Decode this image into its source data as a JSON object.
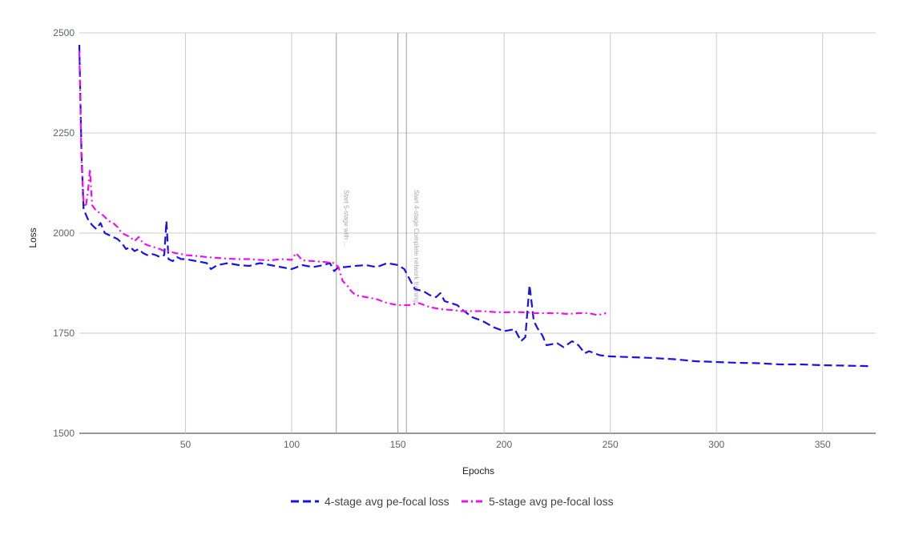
{
  "chart_data": {
    "type": "line",
    "title": "",
    "xlabel": "Epochs",
    "ylabel": "Loss",
    "xlim": [
      0,
      375
    ],
    "ylim": [
      1500,
      2500
    ],
    "x_ticks": [
      50,
      100,
      150,
      200,
      250,
      300,
      350
    ],
    "y_ticks": [
      1500,
      1750,
      2000,
      2250,
      2500
    ],
    "grid": true,
    "legend_position": "bottom",
    "vertical_markers": [
      {
        "x": 121,
        "label": "Start 5-stage with ..."
      },
      {
        "x": 150,
        "label": ""
      },
      {
        "x": 154,
        "label": "Start 4-stage Complete network training"
      }
    ],
    "series": [
      {
        "name": "4-stage avg pe-focal loss",
        "color": "#1a10e8",
        "dash": "dashed",
        "points": [
          [
            0,
            2470
          ],
          [
            1,
            2200
          ],
          [
            2,
            2060
          ],
          [
            4,
            2035
          ],
          [
            6,
            2020
          ],
          [
            8,
            2010
          ],
          [
            10,
            2025
          ],
          [
            12,
            2000
          ],
          [
            14,
            1995
          ],
          [
            16,
            1990
          ],
          [
            18,
            1985
          ],
          [
            20,
            1975
          ],
          [
            22,
            1960
          ],
          [
            24,
            1965
          ],
          [
            26,
            1955
          ],
          [
            28,
            1960
          ],
          [
            30,
            1950
          ],
          [
            32,
            1945
          ],
          [
            34,
            1948
          ],
          [
            36,
            1945
          ],
          [
            38,
            1940
          ],
          [
            40,
            1945
          ],
          [
            41,
            2030
          ],
          [
            42,
            1935
          ],
          [
            44,
            1930
          ],
          [
            46,
            1940
          ],
          [
            48,
            1935
          ],
          [
            50,
            1935
          ],
          [
            55,
            1930
          ],
          [
            60,
            1925
          ],
          [
            62,
            1910
          ],
          [
            65,
            1920
          ],
          [
            70,
            1925
          ],
          [
            75,
            1920
          ],
          [
            80,
            1918
          ],
          [
            85,
            1925
          ],
          [
            90,
            1920
          ],
          [
            95,
            1915
          ],
          [
            100,
            1910
          ],
          [
            105,
            1920
          ],
          [
            110,
            1915
          ],
          [
            115,
            1920
          ],
          [
            118,
            1925
          ],
          [
            120,
            1905
          ],
          [
            122,
            1915
          ],
          [
            125,
            1915
          ],
          [
            130,
            1918
          ],
          [
            135,
            1920
          ],
          [
            140,
            1915
          ],
          [
            145,
            1925
          ],
          [
            150,
            1920
          ],
          [
            153,
            1910
          ],
          [
            156,
            1880
          ],
          [
            158,
            1860
          ],
          [
            162,
            1855
          ],
          [
            165,
            1845
          ],
          [
            168,
            1840
          ],
          [
            170,
            1850
          ],
          [
            172,
            1830
          ],
          [
            175,
            1825
          ],
          [
            178,
            1820
          ],
          [
            180,
            1810
          ],
          [
            185,
            1790
          ],
          [
            190,
            1780
          ],
          [
            195,
            1765
          ],
          [
            200,
            1755
          ],
          [
            205,
            1760
          ],
          [
            208,
            1730
          ],
          [
            210,
            1740
          ],
          [
            212,
            1870
          ],
          [
            214,
            1780
          ],
          [
            216,
            1760
          ],
          [
            218,
            1745
          ],
          [
            220,
            1720
          ],
          [
            225,
            1725
          ],
          [
            228,
            1715
          ],
          [
            232,
            1730
          ],
          [
            235,
            1720
          ],
          [
            238,
            1700
          ],
          [
            240,
            1705
          ],
          [
            245,
            1695
          ],
          [
            250,
            1692
          ],
          [
            260,
            1690
          ],
          [
            270,
            1688
          ],
          [
            280,
            1685
          ],
          [
            290,
            1680
          ],
          [
            300,
            1678
          ],
          [
            310,
            1676
          ],
          [
            320,
            1675
          ],
          [
            330,
            1672
          ],
          [
            340,
            1672
          ],
          [
            350,
            1670
          ],
          [
            360,
            1669
          ],
          [
            370,
            1668
          ],
          [
            373,
            1667
          ]
        ]
      },
      {
        "name": "5-stage avg pe-focal loss",
        "color": "#ee10ee",
        "dash": "dashdot",
        "points": [
          [
            0,
            2455
          ],
          [
            1,
            2180
          ],
          [
            2,
            2080
          ],
          [
            3,
            2065
          ],
          [
            4,
            2100
          ],
          [
            5,
            2160
          ],
          [
            6,
            2070
          ],
          [
            8,
            2055
          ],
          [
            10,
            2050
          ],
          [
            12,
            2040
          ],
          [
            14,
            2030
          ],
          [
            16,
            2025
          ],
          [
            18,
            2015
          ],
          [
            20,
            2000
          ],
          [
            22,
            1995
          ],
          [
            24,
            1990
          ],
          [
            26,
            1980
          ],
          [
            28,
            1990
          ],
          [
            30,
            1975
          ],
          [
            32,
            1970
          ],
          [
            35,
            1965
          ],
          [
            38,
            1960
          ],
          [
            40,
            1955
          ],
          [
            42,
            1955
          ],
          [
            45,
            1950
          ],
          [
            48,
            1948
          ],
          [
            50,
            1945
          ],
          [
            55,
            1943
          ],
          [
            60,
            1940
          ],
          [
            65,
            1938
          ],
          [
            70,
            1936
          ],
          [
            75,
            1935
          ],
          [
            80,
            1935
          ],
          [
            85,
            1933
          ],
          [
            90,
            1932
          ],
          [
            95,
            1935
          ],
          [
            100,
            1933
          ],
          [
            102,
            1950
          ],
          [
            105,
            1932
          ],
          [
            110,
            1930
          ],
          [
            115,
            1928
          ],
          [
            120,
            1925
          ],
          [
            122,
            1915
          ],
          [
            124,
            1880
          ],
          [
            126,
            1870
          ],
          [
            128,
            1855
          ],
          [
            130,
            1845
          ],
          [
            135,
            1840
          ],
          [
            140,
            1835
          ],
          [
            145,
            1825
          ],
          [
            150,
            1820
          ],
          [
            155,
            1820
          ],
          [
            160,
            1825
          ],
          [
            165,
            1815
          ],
          [
            170,
            1810
          ],
          [
            175,
            1808
          ],
          [
            180,
            1805
          ],
          [
            185,
            1805
          ],
          [
            190,
            1805
          ],
          [
            195,
            1803
          ],
          [
            200,
            1802
          ],
          [
            205,
            1803
          ],
          [
            210,
            1802
          ],
          [
            215,
            1800
          ],
          [
            220,
            1800
          ],
          [
            225,
            1800
          ],
          [
            230,
            1798
          ],
          [
            235,
            1800
          ],
          [
            240,
            1800
          ],
          [
            244,
            1795
          ],
          [
            248,
            1800
          ]
        ]
      }
    ]
  }
}
